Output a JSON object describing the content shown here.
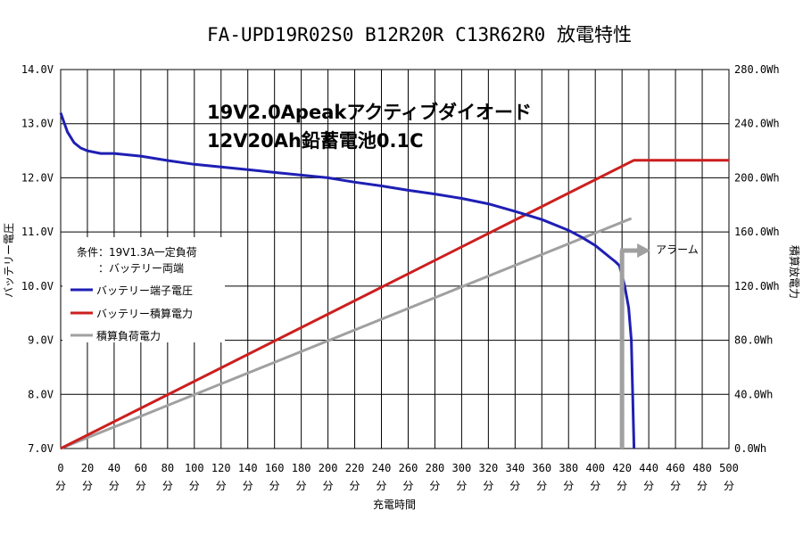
{
  "chart_data": {
    "type": "line",
    "title": "FA-UPD19R02S0 B12R20R C13R62R0 放電特性",
    "annotation_lines": [
      "19V2.0Apeakアクティブダイオード",
      "12V20Ah鉛蓄電池0.1C"
    ],
    "conditions": [
      "条件：19V1.3A一定負荷",
      "：バッテリー両端"
    ],
    "xlabel": "充電時間",
    "ylabel_left": "バッテリー電圧",
    "ylabel_right": "積算放電力",
    "x_ticks": [
      "0分",
      "20分",
      "40分",
      "60分",
      "80分",
      "100分",
      "120分",
      "140分",
      "160分",
      "180分",
      "200分",
      "220分",
      "240分",
      "260分",
      "280分",
      "300分",
      "320分",
      "340分",
      "360分",
      "380分",
      "400分",
      "420分",
      "440分",
      "460分",
      "480分",
      "500分"
    ],
    "y_left_ticks": [
      "7.0V",
      "8.0V",
      "9.0V",
      "10.0V",
      "11.0V",
      "12.0V",
      "13.0V",
      "14.0V"
    ],
    "y_right_ticks": [
      "0.0Wh",
      "40.0Wh",
      "80.0Wh",
      "120.0Wh",
      "160.0Wh",
      "200.0Wh",
      "240.0Wh",
      "280.0Wh"
    ],
    "xlim": [
      0,
      500
    ],
    "ylim_left": [
      7.0,
      14.0
    ],
    "ylim_right": [
      0,
      280
    ],
    "grid": true,
    "legend_position": "left-middle",
    "series": [
      {
        "name": "バッテリー端子電圧",
        "axis": "left",
        "color": "#1f1fb4",
        "x": [
          0,
          5,
          10,
          15,
          20,
          30,
          40,
          60,
          80,
          100,
          120,
          140,
          160,
          180,
          200,
          220,
          240,
          260,
          280,
          300,
          320,
          340,
          360,
          380,
          390,
          400,
          410,
          415,
          418,
          420,
          422,
          425,
          427,
          428,
          429
        ],
        "y": [
          13.2,
          12.85,
          12.65,
          12.55,
          12.5,
          12.45,
          12.45,
          12.4,
          12.32,
          12.25,
          12.2,
          12.15,
          12.1,
          12.05,
          12.0,
          11.92,
          11.85,
          11.77,
          11.7,
          11.62,
          11.52,
          11.38,
          11.23,
          11.03,
          10.9,
          10.75,
          10.55,
          10.45,
          10.38,
          10.2,
          10.0,
          9.6,
          9.0,
          8.0,
          7.0
        ]
      },
      {
        "name": "バッテリー積算電力",
        "axis": "right",
        "color": "#cc1f1f",
        "x": [
          0,
          427,
          429,
          500
        ],
        "y": [
          0,
          212,
          213,
          213
        ]
      },
      {
        "name": "積算負荷電力",
        "axis": "right",
        "color": "#a0a0a0",
        "x": [
          0,
          427
        ],
        "y": [
          0,
          170
        ]
      }
    ],
    "alarm": {
      "label": "アラーム",
      "x": 420,
      "color": "#a0a0a0"
    }
  }
}
